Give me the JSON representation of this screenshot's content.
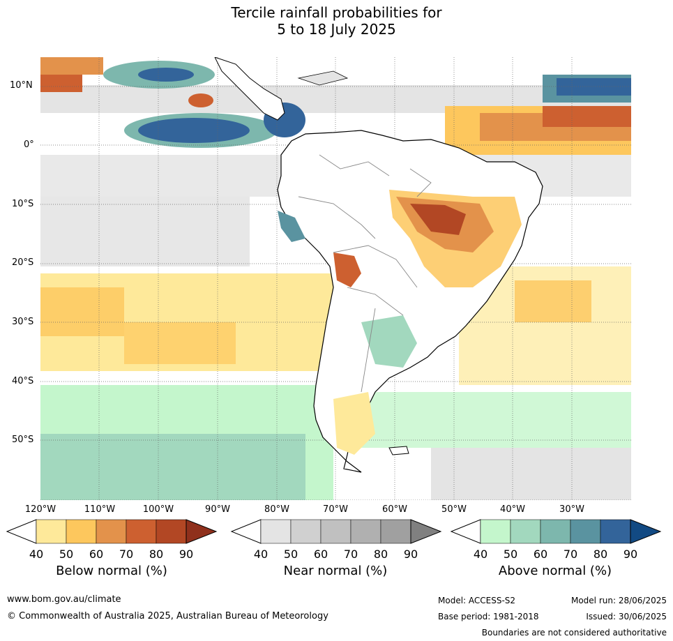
{
  "title": {
    "line1": "Tercile rainfall probabilities for",
    "line2": "5 to 18 July 2025"
  },
  "map": {
    "lat_labels": [
      "10°N",
      "0°",
      "10°S",
      "20°S",
      "30°S",
      "40°S",
      "50°S"
    ],
    "lon_labels": [
      "120°W",
      "110°W",
      "100°W",
      "90°W",
      "80°W",
      "70°W",
      "60°W",
      "50°W",
      "40°W",
      "30°W"
    ],
    "colors": {
      "below": [
        "#fee99a",
        "#fdc75d",
        "#e3924b",
        "#cd6030",
        "#b24724",
        "#8f301c"
      ],
      "near": [
        "#e4e4e4",
        "#d0d0d0",
        "#c0c0c0",
        "#b0b0b0",
        "#a0a0a0",
        "#808080"
      ],
      "above": [
        "#c4f6cc",
        "#a2d8be",
        "#7db7ad",
        "#5a93a0",
        "#33649a",
        "#124a83"
      ]
    }
  },
  "colorbars": [
    {
      "name": "below",
      "title": "Below normal (%)",
      "ticks": [
        "40",
        "50",
        "60",
        "70",
        "80",
        "90"
      ]
    },
    {
      "name": "near",
      "title": "Near normal (%)",
      "ticks": [
        "40",
        "50",
        "60",
        "70",
        "80",
        "90"
      ]
    },
    {
      "name": "above",
      "title": "Above normal (%)",
      "ticks": [
        "40",
        "50",
        "60",
        "70",
        "80",
        "90"
      ]
    }
  ],
  "footer": {
    "url": "www.bom.gov.au/climate",
    "copyright": "© Commonwealth of Australia 2025, Australian Bureau of Meteorology",
    "model": "Model: ACCESS-S2",
    "base_period": "Base period: 1981-2018",
    "model_run": "Model run: 28/06/2025",
    "issued": "Issued: 30/06/2025",
    "disclaimer": "Boundaries are not considered authoritative"
  }
}
